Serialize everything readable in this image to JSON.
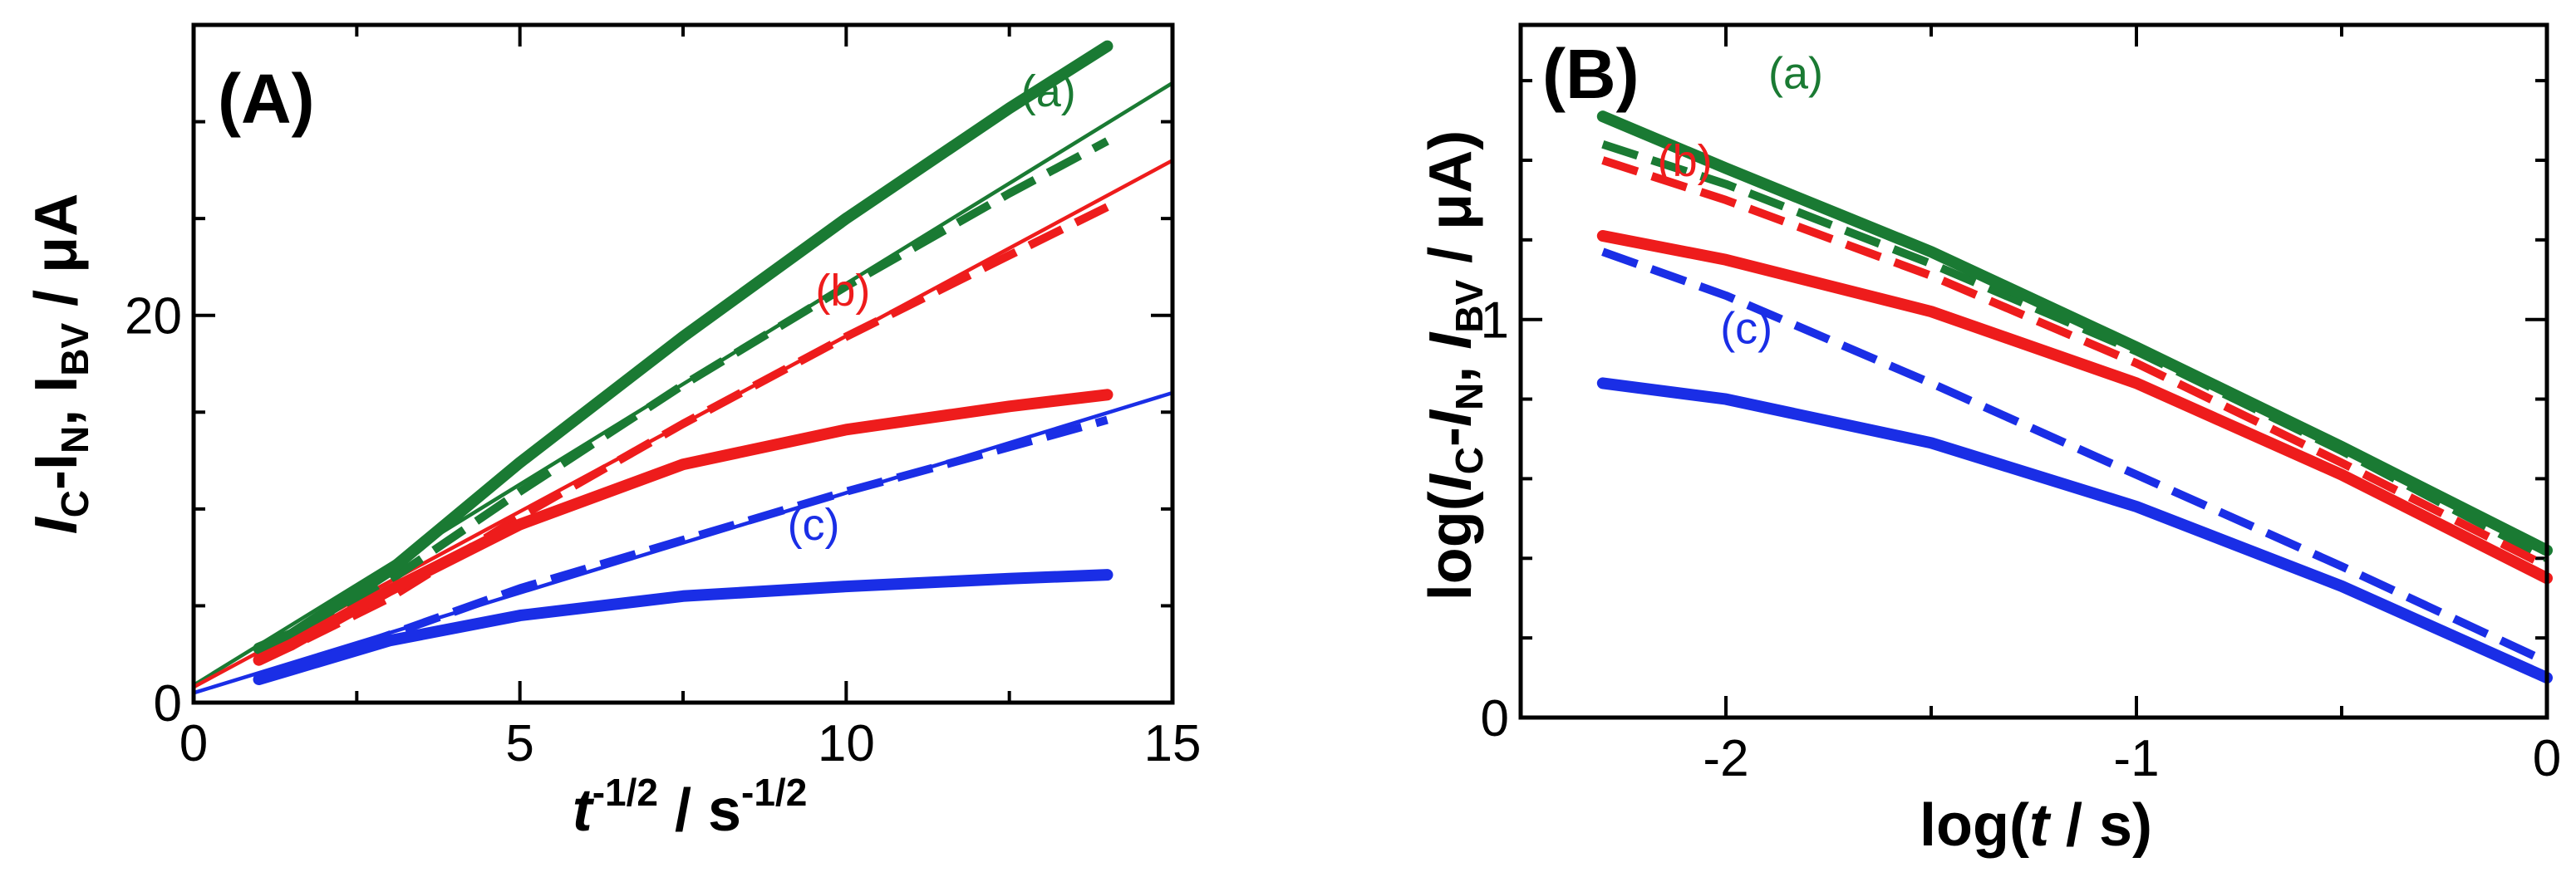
{
  "colors": {
    "a": "#1a7a33",
    "b": "#ee1c1c",
    "c": "#1a2ee6",
    "axis": "#000000"
  },
  "chart_data": [
    {
      "type": "line",
      "panel_label": "(A)",
      "title": "",
      "xlabel": {
        "main": "t",
        "sup1": "-1/2",
        "mid": " / s",
        "sup2": "-1/2"
      },
      "ylabel": {
        "p1": "I",
        "s1": "C",
        "p2": "-I",
        "s2": "N",
        "p3": ", I",
        "s3": "BV",
        "p4": " / μA"
      },
      "xlim": [
        0,
        15
      ],
      "ylim": [
        0,
        35
      ],
      "x_ticks": [
        0,
        5,
        10,
        15
      ],
      "x_tick_labels": [
        "0",
        "5",
        "10",
        "15"
      ],
      "y_ticks": [
        0,
        20
      ],
      "y_tick_labels": [
        "0",
        "20"
      ],
      "series": [
        {
          "name": "(a)",
          "key": "a",
          "style": "thick",
          "x": [
            1,
            1.5,
            3,
            5,
            7.5,
            10,
            12.5,
            14
          ],
          "y": [
            2.8,
            3.5,
            6.8,
            12.4,
            18.9,
            25.0,
            30.7,
            33.9
          ]
        },
        {
          "name": "(a)",
          "key": "a",
          "style": "dashed",
          "x": [
            1,
            1.5,
            3,
            5,
            7.5,
            10,
            12.5,
            14
          ],
          "y": [
            2.3,
            3.0,
            6.3,
            10.9,
            16.4,
            21.5,
            26.3,
            29.0
          ]
        },
        {
          "name": "(a)",
          "key": "a",
          "style": "thin",
          "x": [
            0,
            15
          ],
          "y": [
            0.9,
            32.0
          ]
        },
        {
          "name": "(b)",
          "key": "b",
          "style": "thick",
          "x": [
            1,
            1.5,
            3,
            5,
            7.5,
            10,
            12.5,
            14
          ],
          "y": [
            2.2,
            3.0,
            5.8,
            9.2,
            12.3,
            14.1,
            15.3,
            15.9
          ]
        },
        {
          "name": "(b)",
          "key": "b",
          "style": "dashed",
          "x": [
            1,
            1.5,
            3,
            5,
            7.5,
            10,
            12.5,
            14
          ],
          "y": [
            2.2,
            2.9,
            5.4,
            9.6,
            14.4,
            18.9,
            23.1,
            25.6
          ]
        },
        {
          "name": "(b)",
          "key": "b",
          "style": "thin",
          "x": [
            0,
            15
          ],
          "y": [
            0.8,
            28.0
          ]
        },
        {
          "name": "(c)",
          "key": "c",
          "style": "thick",
          "x": [
            1,
            1.5,
            3,
            5,
            7.5,
            10,
            12.5,
            14
          ],
          "y": [
            1.2,
            1.7,
            3.2,
            4.5,
            5.5,
            6.0,
            6.4,
            6.6
          ]
        },
        {
          "name": "(c)",
          "key": "c",
          "style": "dashed",
          "x": [
            1,
            1.5,
            3,
            5,
            7.5,
            10,
            12.5,
            14
          ],
          "y": [
            1.2,
            1.7,
            3.5,
            5.9,
            8.4,
            10.9,
            13.2,
            14.6
          ]
        },
        {
          "name": "(c)",
          "key": "c",
          "style": "thin",
          "x": [
            0,
            15
          ],
          "y": [
            0.5,
            16.0
          ]
        }
      ],
      "annotations": [
        {
          "text": "(a)",
          "key": "a",
          "x": 13.1,
          "y": 30.8
        },
        {
          "text": "(b)",
          "key": "b",
          "x": 9.95,
          "y": 20.5
        },
        {
          "text": "(c)",
          "key": "c",
          "x": 9.5,
          "y": 8.4
        }
      ]
    },
    {
      "type": "line",
      "panel_label": "(B)",
      "title": "",
      "xlabel": {
        "p1": "log(",
        "it": "t",
        "p2": " / s)"
      },
      "ylabel": {
        "p1": "log(",
        "i1": "I",
        "s1": "C",
        "p2": "-",
        "i2": "I",
        "s2": "N",
        "p3": ", ",
        "i3": "I",
        "s3": "BV",
        "p4": " / μA)"
      },
      "xlim": [
        -2.5,
        0
      ],
      "ylim": [
        0,
        1.74
      ],
      "x_ticks": [
        -2,
        -1,
        0
      ],
      "x_tick_labels": [
        "-2",
        "-1",
        "0"
      ],
      "y_ticks": [
        0,
        1
      ],
      "y_tick_labels": [
        "0",
        "1"
      ],
      "series": [
        {
          "name": "(a)",
          "key": "a",
          "style": "thick",
          "x": [
            -2.3,
            -2.0,
            -1.5,
            -1.0,
            -0.5,
            0
          ],
          "y": [
            1.51,
            1.38,
            1.17,
            0.93,
            0.68,
            0.42
          ]
        },
        {
          "name": "(a)",
          "key": "a",
          "style": "dashed",
          "x": [
            -2.3,
            -2.0,
            -1.5,
            -1.0,
            -0.5,
            0
          ],
          "y": [
            1.44,
            1.34,
            1.14,
            0.92,
            0.67,
            0.4
          ]
        },
        {
          "name": "(b)",
          "key": "b",
          "style": "thick",
          "x": [
            -2.3,
            -2.0,
            -1.5,
            -1.0,
            -0.5,
            0
          ],
          "y": [
            1.21,
            1.15,
            1.02,
            0.84,
            0.61,
            0.35
          ]
        },
        {
          "name": "(b)",
          "key": "b",
          "style": "dashed",
          "x": [
            -2.3,
            -2.0,
            -1.5,
            -1.0,
            -0.5,
            0
          ],
          "y": [
            1.4,
            1.3,
            1.11,
            0.89,
            0.64,
            0.38
          ]
        },
        {
          "name": "(c)",
          "key": "c",
          "style": "thick",
          "x": [
            -2.3,
            -2.0,
            -1.5,
            -1.0,
            -0.5,
            0
          ],
          "y": [
            0.84,
            0.8,
            0.69,
            0.53,
            0.33,
            0.1
          ]
        },
        {
          "name": "(c)",
          "key": "c",
          "style": "dashed",
          "x": [
            -2.3,
            -2.0,
            -1.5,
            -1.0,
            -0.5,
            0
          ],
          "y": [
            1.17,
            1.06,
            0.84,
            0.61,
            0.38,
            0.14
          ]
        }
      ],
      "annotations": [
        {
          "text": "(a)",
          "key": "a",
          "x": -1.83,
          "y": 1.58
        },
        {
          "text": "(b)",
          "key": "b",
          "x": -2.1,
          "y": 1.36
        },
        {
          "text": "(c)",
          "key": "c",
          "x": -1.95,
          "y": 0.94
        }
      ]
    }
  ]
}
